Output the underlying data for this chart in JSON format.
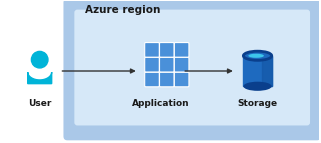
{
  "title": "Azure region",
  "title_fontsize": 7.5,
  "title_fontweight": "bold",
  "title_color": "#1a1a1a",
  "bg_color": "#ffffff",
  "region_outer_color": "#aac8e8",
  "region_inner_color": "#d6e8f8",
  "user_color": "#00b4d8",
  "user_label": "User",
  "app_label": "Application",
  "app_color": "#4a90d9",
  "app_color_light": "#8ab8ed",
  "storage_label": "Storage",
  "storage_color_dark": "#0a3f8c",
  "storage_color_mid": "#1e6abf",
  "storage_color_light": "#40d0f0",
  "storage_color_side": "#1558a8",
  "arrow_color": "#333333",
  "label_fontsize": 6.5,
  "label_fontweight": "bold",
  "label_color": "#1a1a1a",
  "figsize": [
    3.21,
    1.43
  ],
  "dpi": 100
}
